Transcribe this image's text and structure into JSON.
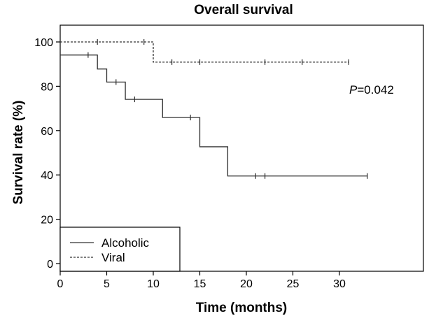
{
  "chart_data": {
    "type": "line",
    "title": "Overall survival",
    "xlabel": "Time (months)",
    "ylabel": "Survival rate (%)",
    "xlim": [
      0,
      34
    ],
    "ylim": [
      -3,
      105
    ],
    "xticks": [
      0,
      5,
      10,
      15,
      20,
      25,
      30
    ],
    "yticks": [
      0,
      20,
      40,
      60,
      80,
      100
    ],
    "grid": false,
    "legend_position": "bottom-left",
    "annotation": {
      "italic": "P",
      "rest": "=0.042"
    },
    "series": [
      {
        "name": "Alcoholic",
        "style": "solid",
        "steps": [
          [
            0,
            94.1
          ],
          [
            4,
            87.8
          ],
          [
            5,
            81.9
          ],
          [
            7,
            74.1
          ],
          [
            11,
            65.9
          ],
          [
            15,
            52.7
          ],
          [
            18,
            39.5
          ],
          [
            33,
            39.5
          ]
        ],
        "censored": [
          [
            3,
            94.1
          ],
          [
            6,
            81.9
          ],
          [
            8,
            74.1
          ],
          [
            14,
            65.9
          ],
          [
            21,
            39.5
          ],
          [
            22,
            39.5
          ],
          [
            33,
            39.5
          ]
        ]
      },
      {
        "name": "Viral",
        "style": "dashed",
        "steps": [
          [
            0,
            100
          ],
          [
            10,
            90.9
          ],
          [
            31,
            90.9
          ]
        ],
        "censored": [
          [
            4,
            100
          ],
          [
            9,
            100
          ],
          [
            12,
            90.9
          ],
          [
            15,
            90.9
          ],
          [
            22,
            90.9
          ],
          [
            26,
            90.9
          ],
          [
            31,
            90.9
          ]
        ]
      }
    ]
  }
}
